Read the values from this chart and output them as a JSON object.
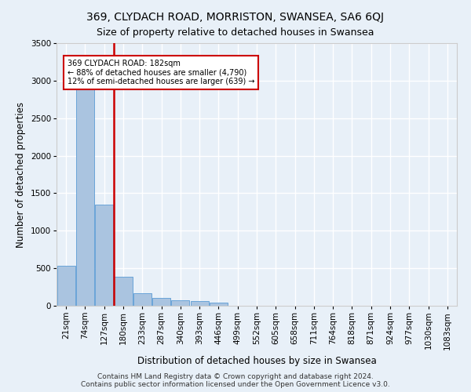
{
  "title1": "369, CLYDACH ROAD, MORRISTON, SWANSEA, SA6 6QJ",
  "title2": "Size of property relative to detached houses in Swansea",
  "xlabel": "Distribution of detached houses by size in Swansea",
  "ylabel": "Number of detached properties",
  "footer": "Contains HM Land Registry data © Crown copyright and database right 2024.\nContains public sector information licensed under the Open Government Licence v3.0.",
  "categories": [
    "21sqm",
    "74sqm",
    "127sqm",
    "180sqm",
    "233sqm",
    "287sqm",
    "340sqm",
    "393sqm",
    "446sqm",
    "499sqm",
    "552sqm",
    "605sqm",
    "658sqm",
    "711sqm",
    "764sqm",
    "818sqm",
    "871sqm",
    "924sqm",
    "977sqm",
    "1030sqm",
    "1083sqm"
  ],
  "values": [
    530,
    2900,
    1350,
    390,
    165,
    100,
    75,
    60,
    45,
    0,
    0,
    0,
    0,
    0,
    0,
    0,
    0,
    0,
    0,
    0,
    0
  ],
  "bar_color": "#aac4e0",
  "bar_edge_color": "#5b9bd5",
  "highlight_line_index": 3,
  "highlight_color": "#cc0000",
  "annotation_line1": "369 CLYDACH ROAD: 182sqm",
  "annotation_line2": "← 88% of detached houses are smaller (4,790)",
  "annotation_line3": "12% of semi-detached houses are larger (639) →",
  "annotation_box_color": "#ffffff",
  "annotation_box_edge": "#cc0000",
  "ylim": [
    0,
    3500
  ],
  "yticks": [
    0,
    500,
    1000,
    1500,
    2000,
    2500,
    3000,
    3500
  ],
  "bg_color": "#e8f0f8",
  "plot_bg_color": "#e8f0f8",
  "grid_color": "#ffffff",
  "title1_fontsize": 10,
  "title2_fontsize": 9,
  "xlabel_fontsize": 8.5,
  "ylabel_fontsize": 8.5,
  "tick_fontsize": 7.5,
  "footer_fontsize": 6.5
}
